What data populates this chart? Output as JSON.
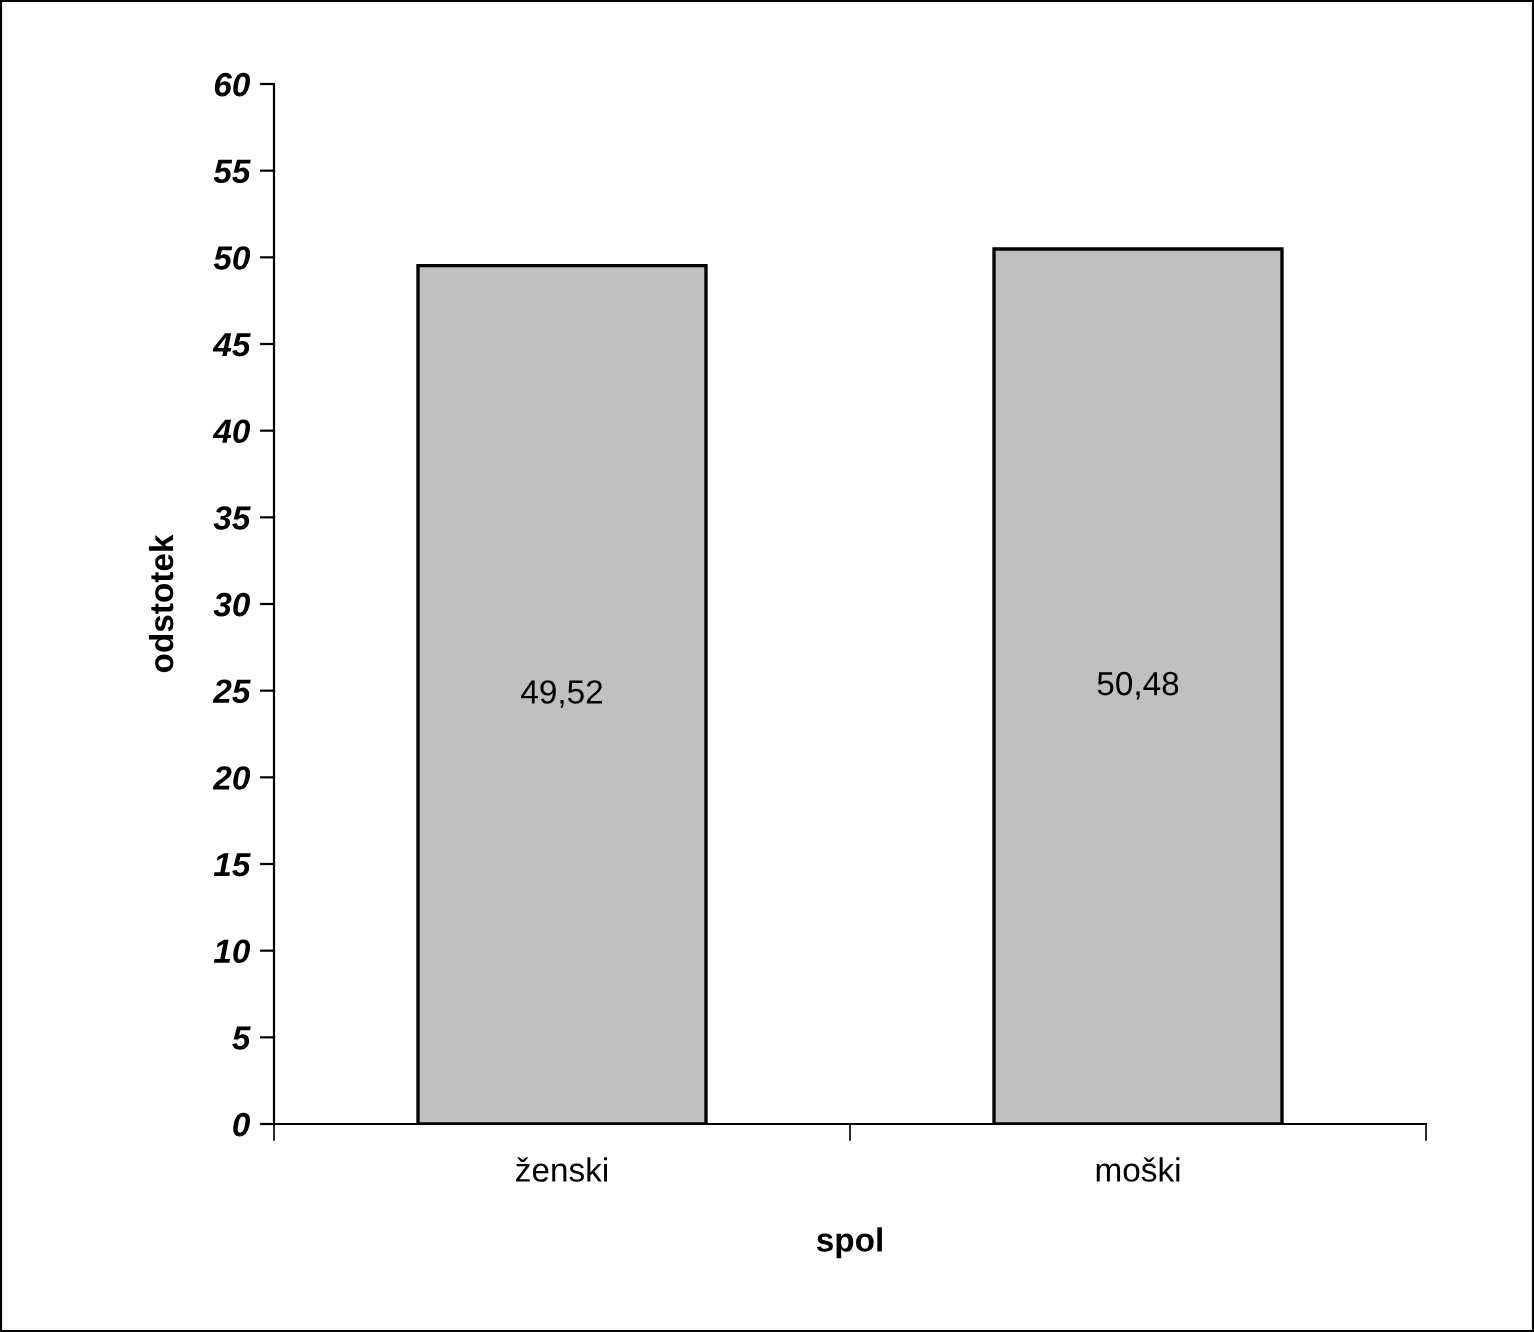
{
  "chart_data": {
    "type": "bar",
    "xlabel": "spol",
    "ylabel": "odstotek",
    "categories": [
      "ženski",
      "moški"
    ],
    "values": [
      49.52,
      50.48
    ],
    "value_labels": [
      "49,52",
      "50,48"
    ],
    "color": "#c0c0c0",
    "ylim": [
      0,
      60
    ],
    "yticks": [
      0,
      5,
      10,
      15,
      20,
      25,
      30,
      35,
      40,
      45,
      50,
      55,
      60
    ],
    "grid": false,
    "legend": false
  }
}
